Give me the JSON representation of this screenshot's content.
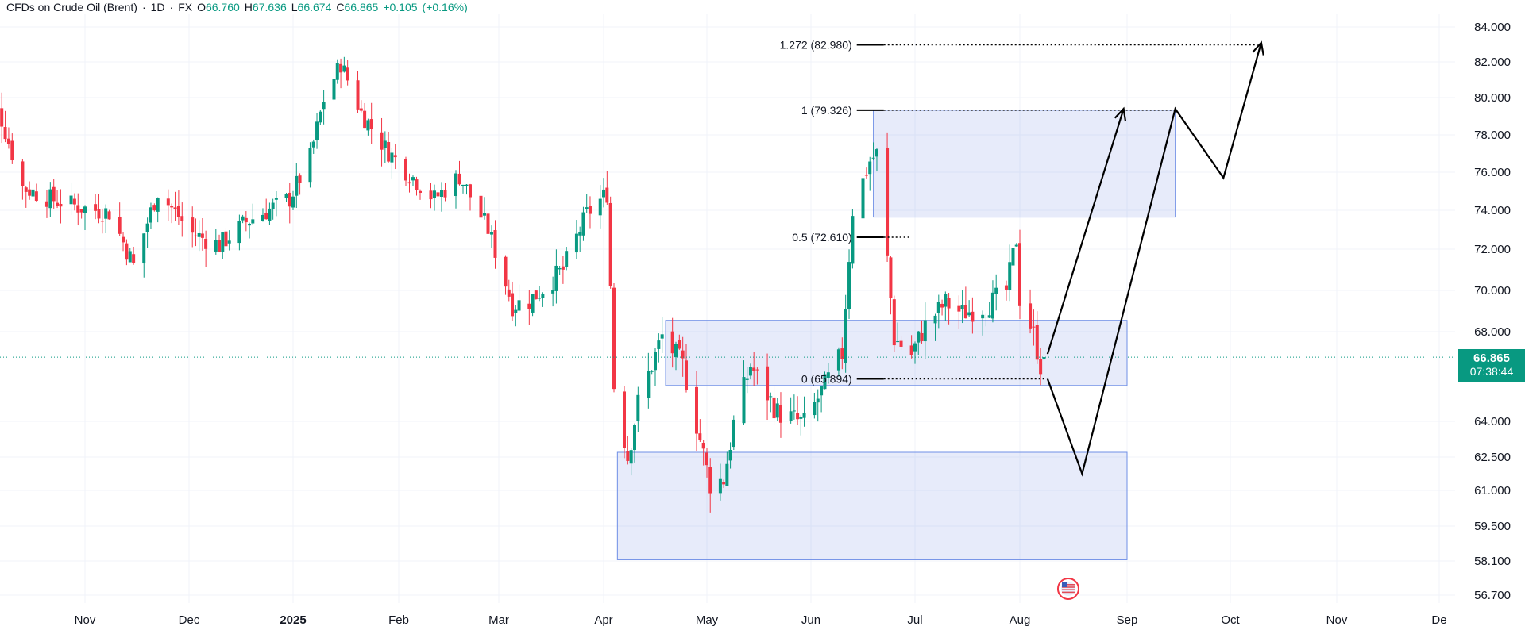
{
  "header": {
    "symbol": "CFDs on Crude Oil (Brent)",
    "interval": "1D",
    "exchange": "FX",
    "open_label": "O",
    "open": "66.760",
    "high_label": "H",
    "high": "67.636",
    "low_label": "L",
    "low": "66.674",
    "close_label": "C",
    "close": "66.865",
    "change": "+0.105",
    "change_pct": "(+0.16%)"
  },
  "price_tag": {
    "price": "66.865",
    "countdown": "07:38:44"
  },
  "chart_data": {
    "type": "candlestick",
    "title": "CFDs on Crude Oil (Brent) · 1D · FX",
    "y_ticks": [
      {
        "value": 84.0,
        "label": "84.000"
      },
      {
        "value": 82.0,
        "label": "82.000"
      },
      {
        "value": 80.0,
        "label": "80.000"
      },
      {
        "value": 78.0,
        "label": "78.000"
      },
      {
        "value": 76.0,
        "label": "76.000"
      },
      {
        "value": 74.0,
        "label": "74.000"
      },
      {
        "value": 72.0,
        "label": "72.000"
      },
      {
        "value": 70.0,
        "label": "70.000"
      },
      {
        "value": 68.0,
        "label": "68.000"
      },
      {
        "value": 64.0,
        "label": "64.000"
      },
      {
        "value": 62.5,
        "label": "62.500"
      },
      {
        "value": 61.0,
        "label": "61.000"
      },
      {
        "value": 59.5,
        "label": "59.500"
      },
      {
        "value": 58.1,
        "label": "58.100"
      },
      {
        "value": 56.7,
        "label": "56.700"
      }
    ],
    "x_ticks": [
      {
        "date": "2024-11-01",
        "label": "Nov",
        "bold": false
      },
      {
        "date": "2024-12-01",
        "label": "Dec",
        "bold": false
      },
      {
        "date": "2025-01-01",
        "label": "2025",
        "bold": true
      },
      {
        "date": "2025-02-01",
        "label": "Feb",
        "bold": false
      },
      {
        "date": "2025-03-01",
        "label": "Mar",
        "bold": false
      },
      {
        "date": "2025-04-01",
        "label": "Apr",
        "bold": false
      },
      {
        "date": "2025-05-01",
        "label": "May",
        "bold": false
      },
      {
        "date": "2025-06-01",
        "label": "Jun",
        "bold": false
      },
      {
        "date": "2025-07-01",
        "label": "Jul",
        "bold": false
      },
      {
        "date": "2025-08-01",
        "label": "Aug",
        "bold": false
      },
      {
        "date": "2025-09-01",
        "label": "Sep",
        "bold": false
      },
      {
        "date": "2025-10-01",
        "label": "Oct",
        "bold": false
      },
      {
        "date": "2025-11-01",
        "label": "Nov",
        "bold": false
      },
      {
        "date": "2025-12-01",
        "label": "De",
        "bold": false
      }
    ],
    "x_range": [
      "2024-10-01",
      "2025-12-03"
    ],
    "y_range": [
      56.0,
      85.0
    ],
    "up_color": "#089981",
    "down_color": "#f23645",
    "last_price": 66.865,
    "anchors": [
      [
        "2024-10-01",
        74.5
      ],
      [
        "2024-10-07",
        79.4
      ],
      [
        "2024-10-14",
        75.2
      ],
      [
        "2024-10-22",
        74.6
      ],
      [
        "2024-11-01",
        74.1
      ],
      [
        "2024-11-08",
        73.9
      ],
      [
        "2024-11-15",
        71.2
      ],
      [
        "2024-11-22",
        75.0
      ],
      [
        "2024-12-02",
        72.8
      ],
      [
        "2024-12-10",
        72.2
      ],
      [
        "2024-12-18",
        73.4
      ],
      [
        "2024-12-31",
        74.6
      ],
      [
        "2025-01-06",
        76.8
      ],
      [
        "2025-01-10",
        79.9
      ],
      [
        "2025-01-15",
        81.9
      ],
      [
        "2025-01-21",
        79.2
      ],
      [
        "2025-01-28",
        77.3
      ],
      [
        "2025-02-04",
        75.9
      ],
      [
        "2025-02-11",
        74.6
      ],
      [
        "2025-02-18",
        75.8
      ],
      [
        "2025-02-26",
        73.0
      ],
      [
        "2025-03-05",
        69.3
      ],
      [
        "2025-03-10",
        69.5
      ],
      [
        "2025-03-20",
        71.0
      ],
      [
        "2025-03-27",
        73.8
      ],
      [
        "2025-04-02",
        74.9
      ],
      [
        "2025-04-04",
        65.6
      ],
      [
        "2025-04-08",
        62.5
      ],
      [
        "2025-04-11",
        64.8
      ],
      [
        "2025-04-18",
        67.8
      ],
      [
        "2025-04-24",
        66.5
      ],
      [
        "2025-05-02",
        61.3
      ],
      [
        "2025-05-06",
        61.5
      ],
      [
        "2025-05-09",
        63.9
      ],
      [
        "2025-05-14",
        66.5
      ],
      [
        "2025-05-22",
        64.4
      ],
      [
        "2025-05-30",
        63.9
      ],
      [
        "2025-06-04",
        65.3
      ],
      [
        "2025-06-10",
        67.0
      ],
      [
        "2025-06-13",
        74.0
      ],
      [
        "2025-06-18",
        76.6
      ],
      [
        "2025-06-20",
        77.0
      ],
      [
        "2025-06-23",
        71.5
      ],
      [
        "2025-06-25",
        67.7
      ],
      [
        "2025-06-30",
        67.0
      ],
      [
        "2025-07-04",
        68.3
      ],
      [
        "2025-07-10",
        69.4
      ],
      [
        "2025-07-15",
        68.9
      ],
      [
        "2025-07-22",
        69.2
      ],
      [
        "2025-07-28",
        70.0
      ],
      [
        "2025-07-31",
        72.5
      ],
      [
        "2025-08-01",
        69.6
      ],
      [
        "2025-08-05",
        67.9
      ],
      [
        "2025-08-07",
        66.5
      ],
      [
        "2025-08-08",
        66.865
      ]
    ],
    "zones": [
      {
        "name": "upper-supply-zone",
        "x0": "2025-06-19",
        "x1": "2025-09-15",
        "y0": 73.65,
        "y1": 79.326
      },
      {
        "name": "middle-demand-zone",
        "x0": "2025-04-19",
        "x1": "2025-09-01",
        "y0": 65.6,
        "y1": 68.55
      },
      {
        "name": "lower-demand-zone",
        "x0": "2025-04-05",
        "x1": "2025-09-01",
        "y0": 58.15,
        "y1": 62.7
      }
    ],
    "fib_levels": [
      {
        "ratio_label": "1.272 (82.980)",
        "value": 82.98,
        "x0": "2025-06-22",
        "x1": "2025-10-09"
      },
      {
        "ratio_label": "1 (79.326)",
        "value": 79.326,
        "x0": "2025-06-22",
        "x1": "2025-09-15"
      },
      {
        "ratio_label": "0.5 (72.610)",
        "value": 72.61,
        "x0": "2025-06-22",
        "x1": "2025-06-30"
      },
      {
        "ratio_label": "0 (65.894)",
        "value": 65.894,
        "x0": "2025-06-22",
        "x1": "2025-08-08"
      }
    ],
    "projection_paths": [
      {
        "name": "projection-path-up",
        "points": [
          [
            "2025-08-09",
            67.0
          ],
          [
            "2025-08-31",
            79.4
          ]
        ]
      },
      {
        "name": "projection-path-down-up",
        "points": [
          [
            "2025-08-09",
            65.9
          ],
          [
            "2025-08-19",
            61.75
          ],
          [
            "2025-09-15",
            79.4
          ],
          [
            "2025-09-29",
            75.7
          ],
          [
            "2025-10-10",
            83.1
          ]
        ]
      }
    ],
    "event_marker": {
      "date": "2025-08-15",
      "name": "us-economic-event-flag-icon"
    }
  }
}
